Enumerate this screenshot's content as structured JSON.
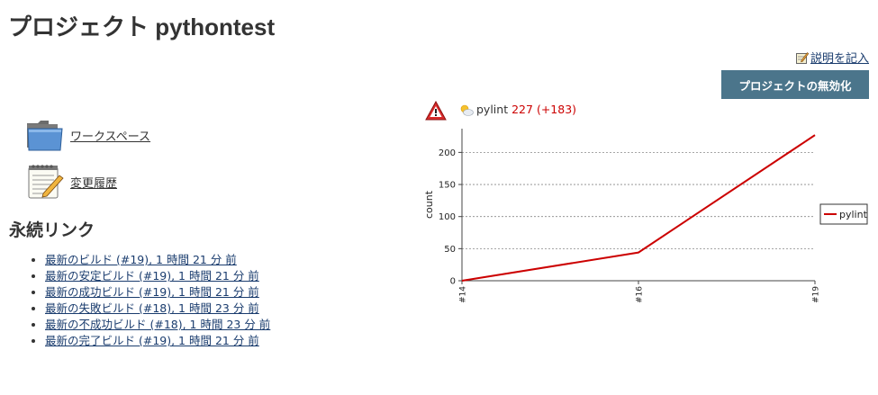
{
  "header": {
    "title": "プロジェクト pythontest"
  },
  "actions": {
    "edit_description": "説明を記入",
    "disable_project": "プロジェクトの無効化"
  },
  "sidebar": {
    "items": [
      {
        "label": "ワークスペース",
        "icon": "folder-icon"
      },
      {
        "label": "変更履歴",
        "icon": "notepad-icon"
      }
    ]
  },
  "permalinks": {
    "heading": "永続リンク",
    "items": [
      "最新のビルド (#19), 1 時間 21 分 前",
      "最新の安定ビルド (#19), 1 時間 21 分 前",
      "最新の成功ビルド (#19), 1 時間 21 分 前",
      "最新の失敗ビルド (#18), 1 時間 23 分 前",
      "最新の不成功ビルド (#18), 1 時間 23 分 前",
      "最新の完了ビルド (#19), 1 時間 21 分 前"
    ]
  },
  "trend": {
    "name": "pylint",
    "count": "227",
    "delta": "(+183)",
    "warning_icon": "warning-triangle-icon",
    "weather_icon": "partly-sunny-icon"
  },
  "chart_data": {
    "type": "line",
    "x": [
      "#14",
      "#16",
      "#19"
    ],
    "series": [
      {
        "name": "pylint",
        "values": [
          0,
          44,
          227
        ]
      }
    ],
    "ylabel": "count",
    "xlabel": "",
    "ylim": [
      0,
      237
    ],
    "yticks": [
      0,
      50,
      100,
      150,
      200
    ],
    "grid": true,
    "legend": "right",
    "color": "#cc0000"
  }
}
